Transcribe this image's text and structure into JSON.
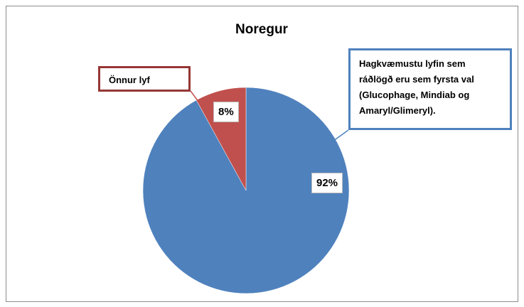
{
  "chart_data": {
    "type": "pie",
    "title": "Noregur",
    "categories": [
      "Hagkvæmustu lyfin sem ráðlögð eru sem fyrsta val (Glucophage, Mindiab og Amaryl/Glimeryl).",
      "Önnur lyf"
    ],
    "values": [
      92,
      8
    ],
    "value_labels": [
      "92%",
      "8%"
    ],
    "colors": [
      "#4f81bd",
      "#c0504d"
    ]
  }
}
